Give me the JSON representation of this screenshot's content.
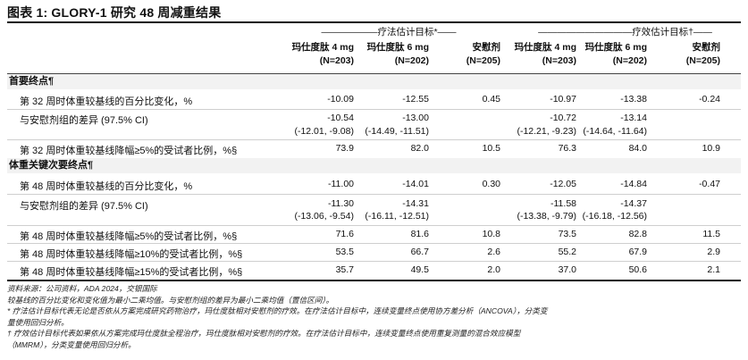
{
  "title": "图表 1: GLORY-1 研究 48 周减重结果",
  "groups": {
    "estimand_efficacy": "疗法估计目标*",
    "estimand_treatment": "疗效估计目标†"
  },
  "columns": [
    {
      "name": "玛仕度肽 4 mg",
      "n": "(N=203)"
    },
    {
      "name": "玛仕度肽 6 mg",
      "n": "(N=202)"
    },
    {
      "name": "安慰剂",
      "n": "(N=205)"
    },
    {
      "name": "玛仕度肽 4 mg",
      "n": "(N=203)"
    },
    {
      "name": "玛仕度肽 6 mg",
      "n": "(N=202)"
    },
    {
      "name": "安慰剂",
      "n": "(N=205)"
    }
  ],
  "sections": {
    "primary": "首要终点¶",
    "key_secondary": "体重关键次要终点¶"
  },
  "rows": [
    {
      "label": "第 32 周时体重较基线的百分比变化，%",
      "values": [
        "-10.09",
        "-12.55",
        "0.45",
        "-10.97",
        "-13.38",
        "-0.24"
      ]
    },
    {
      "label": "与安慰剂组的差异 (97.5% CI)",
      "values": [
        "-10.54",
        "-13.00",
        "",
        "-10.72",
        "-13.14",
        ""
      ],
      "ci": [
        "(-12.01, -9.08)",
        "(-14.49, -11.51)",
        "",
        "(-12.21, -9.23)",
        "(-14.64, -11.64)",
        ""
      ]
    },
    {
      "label": "第 32 周时体重较基线降幅≥5%的受试者比例，%§",
      "values": [
        "73.9",
        "82.0",
        "10.5",
        "76.3",
        "84.0",
        "10.9"
      ]
    },
    {
      "label": "第 48 周时体重较基线的百分比变化，%",
      "values": [
        "-11.00",
        "-14.01",
        "0.30",
        "-12.05",
        "-14.84",
        "-0.47"
      ]
    },
    {
      "label": "与安慰剂组的差异 (97.5% CI)",
      "values": [
        "-11.30",
        "-14.31",
        "",
        "-11.58",
        "-14.37",
        ""
      ],
      "ci": [
        "(-13.06, -9.54)",
        "(-16.11, -12.51)",
        "",
        "(-13.38, -9.79)",
        "(-16.18, -12.56)",
        ""
      ]
    },
    {
      "label": "第 48 周时体重较基线降幅≥5%的受试者比例，%§",
      "values": [
        "71.6",
        "81.6",
        "10.8",
        "73.5",
        "82.8",
        "11.5"
      ]
    },
    {
      "label": "第 48 周时体重较基线降幅≥10%的受试者比例，%§",
      "values": [
        "53.5",
        "66.7",
        "2.6",
        "55.2",
        "67.9",
        "2.9"
      ]
    },
    {
      "label": "第 48 周时体重较基线降幅≥15%的受试者比例，%§",
      "values": [
        "35.7",
        "49.5",
        "2.0",
        "37.0",
        "50.6",
        "2.1"
      ]
    }
  ],
  "notes": [
    "资料来源：公司资料，ADA 2024，交银国际",
    "较基线的百分比变化和变化值为最小二乘均值。与安慰剂组的差异为最小二乘均值（置信区间）。",
    "* 疗法估计目标代表无论是否依从方案完成研究药物治疗，玛仕度肽相对安慰剂的疗效。在疗法估计目标中，连续变量终点使用协方差分析（ANCOVA），分类变",
    "量使用回归分析。",
    "† 疗效估计目标代表如果依从方案完成玛仕度肽全程治疗，玛仕度肽相对安慰剂的疗效。在疗法估计目标中，连续变量终点使用重复测量的混合效应模型",
    "（MMRM），分类变量使用回归分析。"
  ]
}
